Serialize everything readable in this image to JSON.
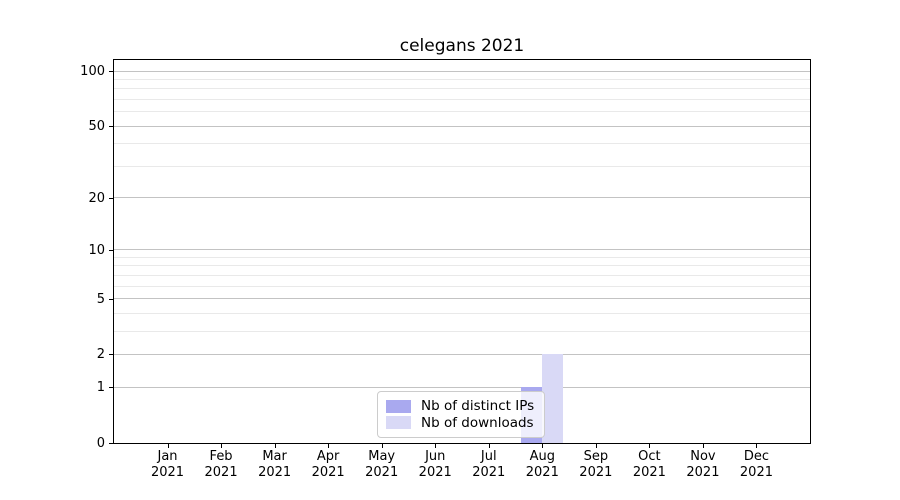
{
  "chart_data": {
    "type": "bar",
    "title": "celegans 2021",
    "categories": [
      "Jan 2021",
      "Feb 2021",
      "Mar 2021",
      "Apr 2021",
      "May 2021",
      "Jun 2021",
      "Jul 2021",
      "Aug 2021",
      "Sep 2021",
      "Oct 2021",
      "Nov 2021",
      "Dec 2021"
    ],
    "series": [
      {
        "name": "Nb of distinct IPs",
        "color": "#a9a9ef",
        "values": [
          0,
          0,
          0,
          0,
          0,
          0,
          0,
          1,
          0,
          0,
          0,
          0
        ]
      },
      {
        "name": "Nb of downloads",
        "color": "#d9d9f6",
        "values": [
          0,
          0,
          0,
          0,
          0,
          0,
          0,
          2,
          0,
          0,
          0,
          0
        ]
      }
    ],
    "xlabel": "",
    "ylabel": "",
    "yscale": "log1p",
    "ylim": [
      0,
      115
    ],
    "yticks": [
      0,
      1,
      2,
      5,
      10,
      20,
      50,
      100
    ],
    "minor_yticks": [
      3,
      4,
      6,
      7,
      8,
      9,
      30,
      40,
      60,
      70,
      80,
      90
    ],
    "grid": "both",
    "legend_position": "lower center"
  },
  "colors": {
    "background": "#ffffff",
    "spine": "#000000",
    "major_grid": "#c3c3c3",
    "minor_grid": "#e9e9e9",
    "legend_border": "#cccccc"
  }
}
